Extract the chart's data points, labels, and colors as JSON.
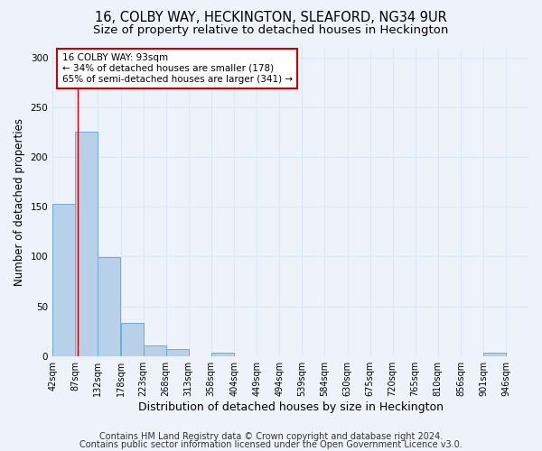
{
  "title_line1": "16, COLBY WAY, HECKINGTON, SLEAFORD, NG34 9UR",
  "title_line2": "Size of property relative to detached houses in Heckington",
  "xlabel": "Distribution of detached houses by size in Heckington",
  "ylabel": "Number of detached properties",
  "bar_edges": [
    42,
    87,
    132,
    178,
    223,
    268,
    313,
    358,
    404,
    449,
    494,
    539,
    584,
    630,
    675,
    720,
    765,
    810,
    856,
    901,
    946
  ],
  "bar_heights": [
    153,
    225,
    99,
    33,
    11,
    7,
    0,
    3,
    0,
    0,
    0,
    0,
    0,
    0,
    0,
    0,
    0,
    0,
    0,
    3,
    0
  ],
  "bar_color": "#b8d0e8",
  "bar_edge_color": "#6aaed6",
  "grid_color": "#dce8f5",
  "background_color": "#eef3fb",
  "property_size": 93,
  "red_line_color": "#cc0000",
  "annotation_text": "16 COLBY WAY: 93sqm\n← 34% of detached houses are smaller (178)\n65% of semi-detached houses are larger (341) →",
  "annotation_box_color": "white",
  "annotation_box_edge_color": "#cc0000",
  "ylim": [
    0,
    310
  ],
  "yticks": [
    0,
    50,
    100,
    150,
    200,
    250,
    300
  ],
  "footer_line1": "Contains HM Land Registry data © Crown copyright and database right 2024.",
  "footer_line2": "Contains public sector information licensed under the Open Government Licence v3.0.",
  "title_fontsize": 10.5,
  "subtitle_fontsize": 9.5,
  "tick_label_fontsize": 7,
  "ylabel_fontsize": 8.5,
  "xlabel_fontsize": 9,
  "footer_fontsize": 7
}
